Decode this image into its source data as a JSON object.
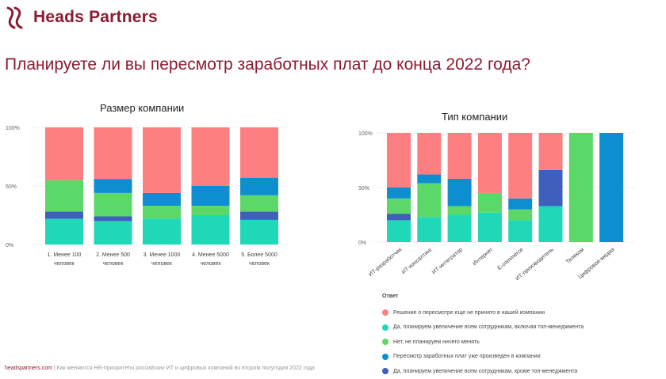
{
  "header": {
    "brand": "Heads Partners",
    "brand_color": "#8b1c31",
    "logo_icon": "heads-partners-logo-icon"
  },
  "title": "Планируете ли вы пересмотр заработных плат до конца 2022 года?",
  "colors": {
    "not_decided": "#fd7f82",
    "all_incl_top": "#1fd8b8",
    "no_change": "#5bd868",
    "already_done": "#0d8ed1",
    "all_except_top": "#3f5fbd"
  },
  "chart_data": [
    {
      "type": "bar",
      "stacked": true,
      "title": "Размер компании",
      "categories": [
        "1. Менее 100 человек",
        "2. Менее 500 человек",
        "3. Менее 1000 человек",
        "4. Менее 5000 человек",
        "5. Более 5000 человек"
      ],
      "category_lines": [
        [
          "1. Менее 100",
          "человек"
        ],
        [
          "2. Менее 500",
          "человек"
        ],
        [
          "3. Менее 1000",
          "человек"
        ],
        [
          "4. Менее 5000",
          "человек"
        ],
        [
          "5. Более 5000",
          "человек"
        ]
      ],
      "ylim": [
        0,
        100
      ],
      "yticks": [
        "0%",
        "50%",
        "100%"
      ],
      "series": [
        {
          "name": "Да, планируем увеличение всем сотрудникам, включая топ-менеджмента",
          "color": "#1fd8b8",
          "values": [
            22,
            20,
            22,
            25,
            21
          ]
        },
        {
          "name": "Да, планируем увеличение всем сотрудникам, кроме топ-менеджмента",
          "color": "#3f5fbd",
          "values": [
            6,
            4,
            0,
            0,
            7
          ]
        },
        {
          "name": "Нет, не планируем ничего менять",
          "color": "#5bd868",
          "values": [
            27,
            20,
            11,
            8,
            14
          ]
        },
        {
          "name": "Пересмотр заработных плат уже произведен в компании",
          "color": "#0d8ed1",
          "values": [
            0,
            12,
            11,
            17,
            15
          ]
        },
        {
          "name": "Решение о пересмотре еще не принято в нашей компании",
          "color": "#fd7f82",
          "values": [
            45,
            44,
            56,
            50,
            43
          ]
        }
      ]
    },
    {
      "type": "bar",
      "stacked": true,
      "title": "Тип компании",
      "categories": [
        "ИТ-разработчик",
        "ИТ-консалтинг",
        "ИТ-интегратор",
        "Интернет",
        "E-commerce",
        "ИТ-производитель",
        "Телеком",
        "Цифровое-медиа"
      ],
      "ylim": [
        0,
        100
      ],
      "yticks": [
        "0%",
        "50%",
        "100%"
      ],
      "series": [
        {
          "name": "Да, планируем увеличение всем сотрудникам, включая топ-менеджмента",
          "color": "#1fd8b8",
          "values": [
            20,
            23,
            25,
            27,
            20,
            33,
            0,
            0
          ]
        },
        {
          "name": "Да, планируем увеличение всем сотрудникам, кроме топ-менеджмента",
          "color": "#3f5fbd",
          "values": [
            6,
            0,
            0,
            0,
            0,
            33,
            0,
            0
          ]
        },
        {
          "name": "Нет, не планируем ничего менять",
          "color": "#5bd868",
          "values": [
            14,
            31,
            8,
            18,
            10,
            0,
            100,
            0
          ]
        },
        {
          "name": "Пересмотр заработных плат уже произведен в компании",
          "color": "#0d8ed1",
          "values": [
            10,
            8,
            25,
            0,
            10,
            0,
            0,
            100
          ]
        },
        {
          "name": "Решение о пересмотре еще не принято в нашей компании",
          "color": "#fd7f82",
          "values": [
            50,
            38,
            42,
            55,
            60,
            34,
            0,
            0
          ]
        }
      ]
    }
  ],
  "legend": {
    "title": "Ответ",
    "items": [
      {
        "label": "Решение о пересмотре еще не принято в нашей компании",
        "color": "#fd7f82"
      },
      {
        "label": "Да, планируем увеличение всем сотрудникам, включая топ-менеджмента",
        "color": "#1fd8b8"
      },
      {
        "label": "Нет, не планируем ничего менять",
        "color": "#5bd868"
      },
      {
        "label": "Пересмотр заработных плат уже произведен в компании",
        "color": "#0d8ed1"
      },
      {
        "label": "Да, планируем увеличение всем сотрудникам, кроме топ-менеджмента",
        "color": "#3f5fbd"
      }
    ]
  },
  "footer": {
    "site": "headspartners.com",
    "separator": " | ",
    "text": "Как меняются HR-приоритеты российских ИТ и цифровых компаний во втором полугодии 2022 года"
  }
}
